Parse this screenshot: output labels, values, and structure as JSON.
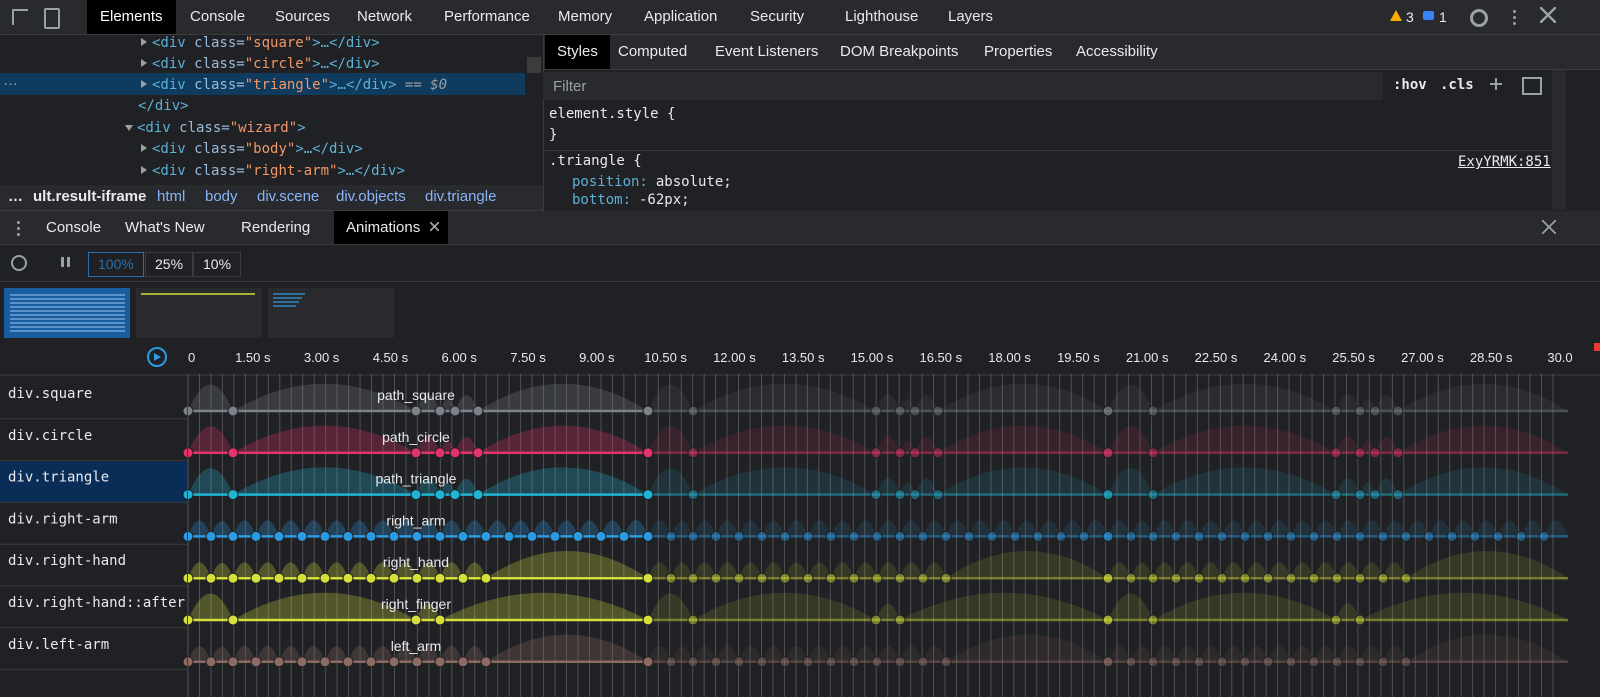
{
  "toolbar": {
    "tabs": [
      "Elements",
      "Console",
      "Sources",
      "Network",
      "Performance",
      "Memory",
      "Application",
      "Security",
      "Lighthouse",
      "Layers"
    ],
    "warnings": "3",
    "messages": "1"
  },
  "elements": {
    "lines": [
      [
        "<div",
        " class=",
        "\"square\"",
        ">…</div>"
      ],
      [
        "<div",
        " class=",
        "\"circle\"",
        ">…</div>"
      ],
      [
        "<div",
        " class=",
        "\"triangle\"",
        ">…</div>",
        " == $0"
      ],
      [
        "</div>"
      ],
      [
        "<div",
        " class=",
        "\"wizard\"",
        ">"
      ],
      [
        "<div",
        " class=",
        "\"body\"",
        ">…</div>"
      ],
      [
        "<div",
        " class=",
        "\"right-arm\"",
        ">…</div>"
      ]
    ],
    "selected_marker": "…",
    "breadcrumbs": [
      "…",
      "ult.result-iframe",
      "html",
      "body",
      "div.scene",
      "div.objects",
      "div.triangle"
    ]
  },
  "styles": {
    "tabs": [
      "Styles",
      "Computed",
      "Event Listeners",
      "DOM Breakpoints",
      "Properties",
      "Accessibility"
    ],
    "filter": "Filter",
    "hov": ":hov",
    "cls": ".cls",
    "element_rule": {
      "selector": "element.style {",
      "close": "}"
    },
    "rule": {
      "selector": ".triangle {",
      "source": "ExyYRMK:851",
      "declarations": [
        {
          "property": "position:",
          "value": "absolute;"
        },
        {
          "property": "bottom:",
          "value": "-62px;"
        }
      ]
    }
  },
  "drawer": {
    "tabs": [
      "Console",
      "What's New",
      "Rendering",
      "Animations"
    ],
    "speeds": [
      "100%",
      "25%",
      "10%"
    ]
  },
  "timeline": {
    "ticks": [
      "0",
      "1.50 s",
      "3.00 s",
      "4.50 s",
      "6.00 s",
      "7.50 s",
      "9.00 s",
      "10.50 s",
      "12.00 s",
      "13.50 s",
      "15.00 s",
      "16.50 s",
      "18.00 s",
      "19.50 s",
      "21.00 s",
      "22.50 s",
      "24.00 s",
      "25.50 s",
      "27.00 s",
      "28.50 s",
      "30.0"
    ]
  },
  "animations": [
    {
      "node": "div.square",
      "name": "path_square",
      "color": "#7b828a"
    },
    {
      "node": "div.circle",
      "name": "path_circle",
      "color": "#e3336a"
    },
    {
      "node": "div.triangle",
      "name": "path_triangle",
      "color": "#1fb4d4"
    },
    {
      "node": "div.right-arm",
      "name": "right_arm",
      "color": "#2b9ce3"
    },
    {
      "node": "div.right-hand",
      "name": "right_hand",
      "color": "#d5e03a"
    },
    {
      "node": "div.right-hand::after",
      "name": "right_finger",
      "color": "#d5e03a"
    },
    {
      "node": "div.left-arm",
      "name": "left_arm",
      "color": "#8d6b62"
    }
  ]
}
